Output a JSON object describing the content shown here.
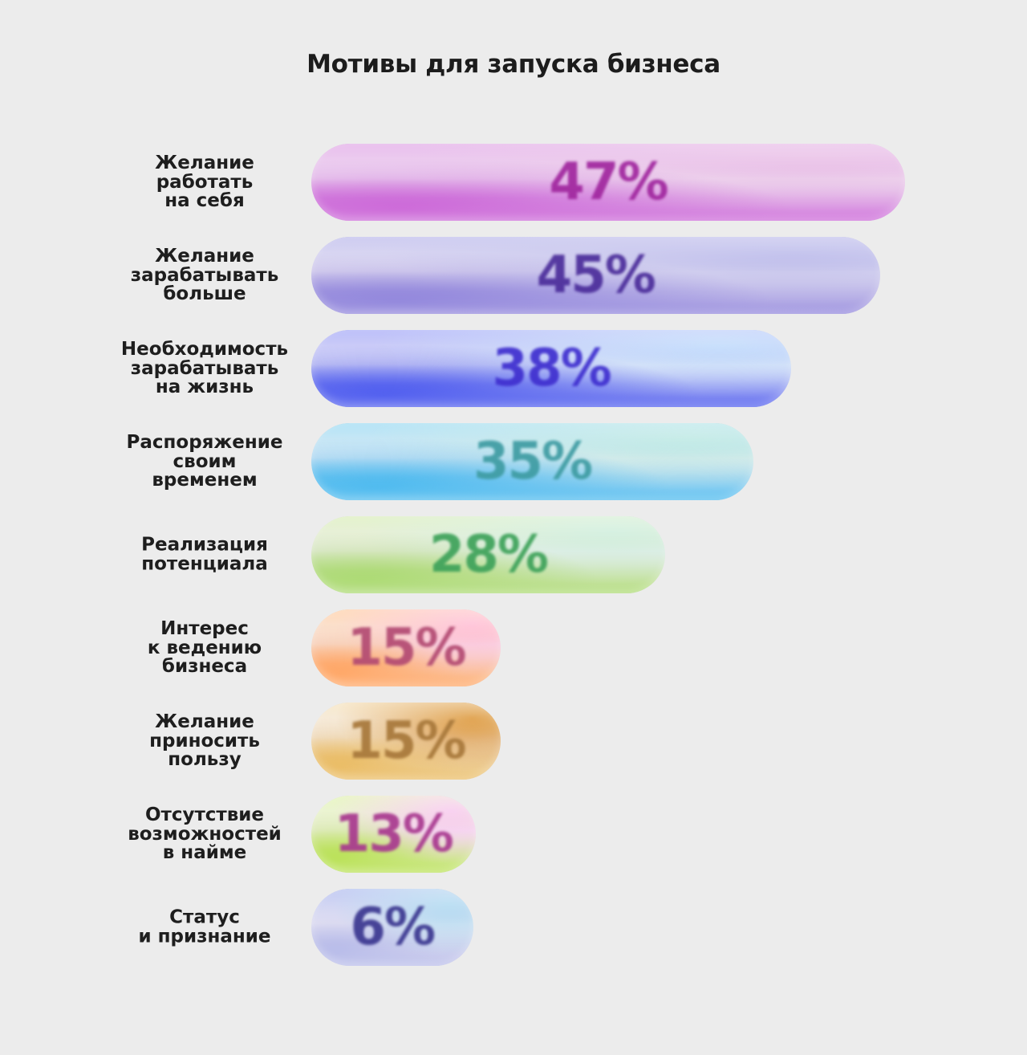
{
  "chart_data": {
    "type": "bar",
    "orientation": "horizontal",
    "title": "Мотивы для запуска бизнеса",
    "categories": [
      "Желание\nработать\nна себя",
      "Желание\nзарабатывать\nбольше",
      "Необходимость\nзарабатывать\nна жизнь",
      "Распоряжение\nсвоим\nвременем",
      "Реализация\nпотенциала",
      "Интерес\nк ведению\nбизнеса",
      "Желание\nприносить\nпользу",
      "Отсутствие\nвозможностей\nв найме",
      "Статус\nи признание"
    ],
    "values": [
      47,
      45,
      38,
      35,
      28,
      15,
      15,
      13,
      6
    ],
    "data_labels": [
      "47%",
      "45%",
      "38%",
      "35%",
      "28%",
      "15%",
      "15%",
      "13%",
      "6%"
    ],
    "grid": false,
    "legend": "none"
  },
  "styles": [
    {
      "gradient": [
        "#d98fe0",
        "#c95fd6",
        "#e6b6e3"
      ],
      "text_color": "#a0269e"
    },
    {
      "gradient": [
        "#a9a6e6",
        "#8b7fda",
        "#b3b2e8"
      ],
      "text_color": "#4b2d9a"
    },
    {
      "gradient": [
        "#8a8ff5",
        "#4453ee",
        "#b8d6fb"
      ],
      "text_color": "#3f2fcf"
    },
    {
      "gradient": [
        "#7fd0ef",
        "#42b6ee",
        "#b5e6e0"
      ],
      "text_color": "#3f9ca3"
    },
    {
      "gradient": [
        "#cfe8a6",
        "#a7d86a",
        "#c9ecd8"
      ],
      "text_color": "#3ea25a"
    },
    {
      "gradient": [
        "#ffc08a",
        "#ffa15c",
        "#ffb5cf"
      ],
      "text_color": "#b24a72"
    },
    {
      "gradient": [
        "#f2d9a9",
        "#e9b85a",
        "#d88a21"
      ],
      "text_color": "#a7783b"
    },
    {
      "gradient": [
        "#d8f09a",
        "#b6e04d",
        "#f7c3ec"
      ],
      "text_color": "#a8388f"
    },
    {
      "gradient": [
        "#9aa7ea",
        "#b4b8e8",
        "#a8d6ef"
      ],
      "text_color": "#3b3790"
    }
  ]
}
